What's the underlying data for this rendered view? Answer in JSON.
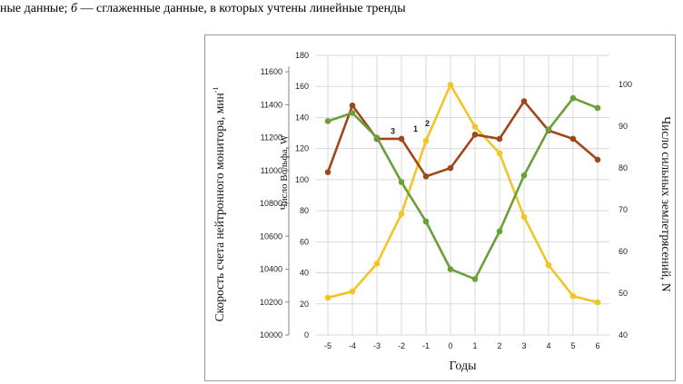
{
  "caption": {
    "prefix": "ные данные; ",
    "italic": "б",
    "suffix": " — сглаженные данные, в которых учтены линейные тренды"
  },
  "colors": {
    "series1": "#f2c526",
    "series2": "#a0471a",
    "series3": "#6a9f3a",
    "grid": "#d9d9d9",
    "axis": "#888888"
  },
  "chart_data": {
    "type": "line",
    "xlabel": "Годы",
    "ylabel_left": "Скорость счета нейтронного монитора, мин",
    "ylabel_left_superscript": "-1",
    "ylabel_mid": "Число Вольфа, W",
    "ylabel_right": "Число сильных землетрясений, N",
    "x": [
      -5,
      -4,
      -3,
      -2,
      -1,
      0,
      1,
      2,
      3,
      4,
      5,
      6
    ],
    "x_ticks": [
      "-5",
      "-4",
      "-3",
      "-2",
      "-1",
      "0",
      "1",
      "2",
      "3",
      "4",
      "5",
      "6"
    ],
    "left_axis": {
      "ylim": [
        10000,
        11700
      ],
      "ticks": [
        "10000",
        "10200",
        "10400",
        "10600",
        "10800",
        "11000",
        "11200",
        "11400",
        "11600"
      ]
    },
    "mid_axis": {
      "ylim": [
        0,
        180
      ],
      "ticks": [
        "0",
        "20",
        "40",
        "60",
        "80",
        "100",
        "120",
        "140",
        "160",
        "180"
      ]
    },
    "right_axis": {
      "ylim": [
        40,
        107
      ],
      "ticks": [
        "40",
        "50",
        "60",
        "70",
        "80",
        "90",
        "100"
      ]
    },
    "grid": true,
    "series": [
      {
        "name": "1",
        "axis": "mid",
        "color": "#f2c526",
        "values": [
          24,
          28,
          46,
          78,
          125,
          161,
          134,
          117,
          76,
          45,
          25,
          21
        ]
      },
      {
        "name": "2",
        "axis": "right",
        "color": "#a0471a",
        "values": [
          79,
          95,
          87,
          87,
          78,
          80,
          88,
          87,
          96,
          89,
          87,
          82
        ]
      },
      {
        "name": "3",
        "axis": "left",
        "color": "#6a9f3a",
        "values": [
          11300,
          11350,
          11200,
          10930,
          10690,
          10400,
          10340,
          10630,
          10970,
          11250,
          11440,
          11380
        ]
      }
    ]
  }
}
